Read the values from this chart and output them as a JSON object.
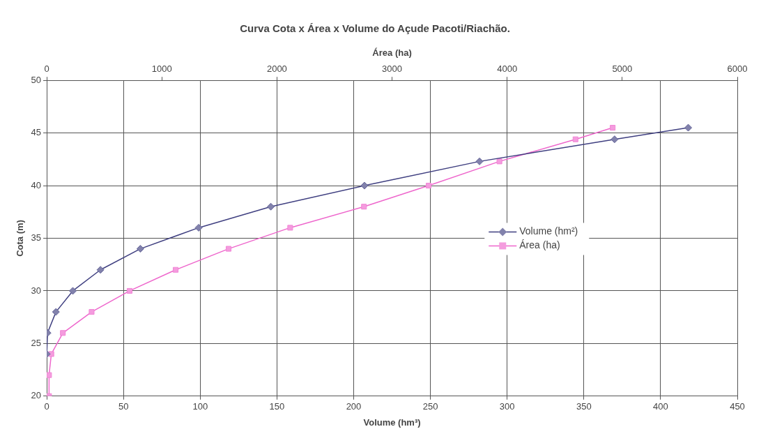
{
  "chart_data": {
    "type": "line",
    "title": "Curva Cota x Área x Volume do Açude Pacoti/Riachão.",
    "xlabel": "Volume (hm³)",
    "x2label": "Área (ha)",
    "ylabel": "Cota (m)",
    "xlim": [
      0,
      450
    ],
    "xticks": [
      0,
      50,
      100,
      150,
      200,
      250,
      300,
      350,
      400,
      450
    ],
    "x2lim": [
      0,
      6000
    ],
    "x2ticks": [
      0,
      1000,
      2000,
      3000,
      4000,
      5000,
      6000
    ],
    "ylim": [
      20,
      50
    ],
    "yticks": [
      20,
      25,
      30,
      35,
      40,
      45,
      50
    ],
    "grid": true,
    "legend": "right",
    "series": [
      {
        "name": "Volume (hm²)",
        "color": "#3f3f80",
        "marker": "diamond",
        "x": [
          0,
          0.5,
          6,
          17,
          35,
          61,
          99,
          146,
          207,
          282,
          370,
          418
        ],
        "values": [
          24,
          26,
          28,
          30,
          32,
          34,
          36,
          38,
          40,
          42.3,
          44.4,
          45.5
        ]
      },
      {
        "name": "Área (ha)",
        "color": "#ee66cc",
        "marker": "square",
        "axis": "x2",
        "x": [
          20,
          20,
          40,
          140,
          390,
          720,
          1120,
          1580,
          2115,
          2756,
          3318,
          3933,
          4594,
          4917
        ],
        "values": [
          20,
          22,
          24,
          26,
          28,
          30,
          32,
          34,
          36,
          38,
          40,
          42.3,
          44.4,
          45.5
        ]
      }
    ]
  }
}
